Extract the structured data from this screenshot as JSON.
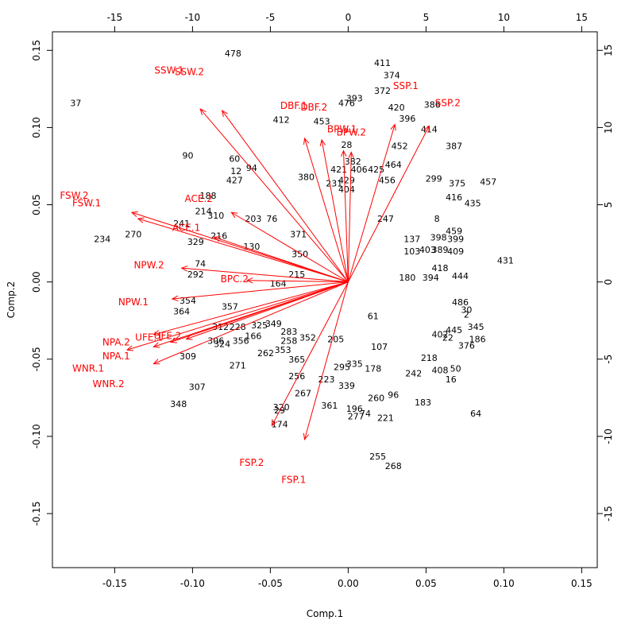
{
  "chart_data": {
    "type": "scatter",
    "subtype": "pca-biplot",
    "xlabel": "Comp.1",
    "ylabel": "Comp.2",
    "xlim": [
      -0.19,
      0.16
    ],
    "ylim": [
      -0.185,
      0.162
    ],
    "x_ticks": [
      -0.15,
      -0.1,
      -0.05,
      0.0,
      0.05,
      0.1,
      0.15
    ],
    "x_tick_labels": [
      "-0.15",
      "-0.10",
      "-0.05",
      "0.00",
      "0.05",
      "0.10",
      "0.15"
    ],
    "y_ticks": [
      -0.15,
      -0.1,
      -0.05,
      0.0,
      0.05,
      0.1,
      0.15
    ],
    "y_tick_labels": [
      "-0.15",
      "-0.10",
      "-0.05",
      "0.00",
      "0.05",
      "0.10",
      "0.15"
    ],
    "top_axis_ticks": [
      -15,
      -10,
      -5,
      0,
      5,
      10,
      15
    ],
    "top_axis_tick_labels": [
      "-15",
      "-10",
      "-5",
      "0",
      "5",
      "10",
      "15"
    ],
    "right_axis_ticks": [
      15,
      10,
      5,
      0,
      -5,
      -10,
      -15
    ],
    "right_axis_tick_labels": [
      "15",
      "10",
      "5",
      "0",
      "-5",
      "-10",
      "-15"
    ],
    "secondary_scale": 100,
    "grid": false,
    "colors": {
      "observations": "#000000",
      "loadings": "#ff0000"
    },
    "loadings": [
      {
        "name": "SSW.1",
        "x": -0.095,
        "y": 0.112,
        "lx": -0.115,
        "ly": 0.137
      },
      {
        "name": "SSW.2",
        "x": -0.081,
        "y": 0.111,
        "lx": -0.102,
        "ly": 0.136
      },
      {
        "name": "DBF.1",
        "x": -0.028,
        "y": 0.093,
        "lx": -0.035,
        "ly": 0.114
      },
      {
        "name": "DBF.2",
        "x": -0.017,
        "y": 0.092,
        "lx": -0.022,
        "ly": 0.113
      },
      {
        "name": "BPW.1",
        "x": -0.003,
        "y": 0.085,
        "lx": -0.004,
        "ly": 0.099
      },
      {
        "name": "BPW.2",
        "x": 0.002,
        "y": 0.084,
        "lx": 0.002,
        "ly": 0.097
      },
      {
        "name": "SSP.1",
        "x": 0.03,
        "y": 0.102,
        "lx": 0.037,
        "ly": 0.127
      },
      {
        "name": "SSP.2",
        "x": 0.052,
        "y": 0.101,
        "lx": 0.064,
        "ly": 0.116
      },
      {
        "name": "ACE.2",
        "x": -0.075,
        "y": 0.045,
        "lx": -0.096,
        "ly": 0.054
      },
      {
        "name": "ACE.1",
        "x": -0.086,
        "y": 0.029,
        "lx": -0.104,
        "ly": 0.035
      },
      {
        "name": "FSW.2",
        "x": -0.139,
        "y": 0.045,
        "lx": -0.176,
        "ly": 0.056
      },
      {
        "name": "FSW.1",
        "x": -0.135,
        "y": 0.041,
        "lx": -0.168,
        "ly": 0.051
      },
      {
        "name": "NPW.2",
        "x": -0.107,
        "y": 0.009,
        "lx": -0.128,
        "ly": 0.011
      },
      {
        "name": "NPW.1",
        "x": -0.113,
        "y": -0.011,
        "lx": -0.138,
        "ly": -0.013
      },
      {
        "name": "BPC.2",
        "x": -0.065,
        "y": 0.001,
        "lx": -0.073,
        "ly": 0.002
      },
      {
        "name": "UFE.1",
        "x": -0.114,
        "y": -0.039,
        "lx": -0.128,
        "ly": -0.036
      },
      {
        "name": "UFE.2",
        "x": -0.104,
        "y": -0.037,
        "lx": -0.116,
        "ly": -0.035
      },
      {
        "name": "NPA.2",
        "x": -0.125,
        "y": -0.034,
        "lx": -0.149,
        "ly": -0.039
      },
      {
        "name": "NPA.1",
        "x": -0.125,
        "y": -0.042,
        "lx": -0.149,
        "ly": -0.048
      },
      {
        "name": "WNR.1",
        "x": -0.142,
        "y": -0.044,
        "lx": -0.167,
        "ly": -0.056
      },
      {
        "name": "WNR.2",
        "x": -0.125,
        "y": -0.053,
        "lx": -0.154,
        "ly": -0.066
      },
      {
        "name": "FSP.2",
        "x": -0.049,
        "y": -0.093,
        "lx": -0.062,
        "ly": -0.117
      },
      {
        "name": "FSP.1",
        "x": -0.028,
        "y": -0.102,
        "lx": -0.035,
        "ly": -0.128
      }
    ],
    "observations": [
      {
        "label": "478",
        "x": -0.074,
        "y": 0.148
      },
      {
        "label": "37",
        "x": -0.175,
        "y": 0.116
      },
      {
        "label": "411",
        "x": 0.022,
        "y": 0.142
      },
      {
        "label": "374",
        "x": 0.028,
        "y": 0.134
      },
      {
        "label": "372",
        "x": 0.022,
        "y": 0.124
      },
      {
        "label": "393",
        "x": 0.004,
        "y": 0.119
      },
      {
        "label": "476",
        "x": -0.001,
        "y": 0.116
      },
      {
        "label": "412",
        "x": -0.043,
        "y": 0.105
      },
      {
        "label": "453",
        "x": -0.017,
        "y": 0.104
      },
      {
        "label": "420",
        "x": 0.031,
        "y": 0.113
      },
      {
        "label": "396",
        "x": 0.038,
        "y": 0.106
      },
      {
        "label": "386",
        "x": 0.054,
        "y": 0.115
      },
      {
        "label": "414",
        "x": 0.052,
        "y": 0.099
      },
      {
        "label": "387",
        "x": 0.068,
        "y": 0.088
      },
      {
        "label": "452",
        "x": 0.033,
        "y": 0.088
      },
      {
        "label": "28",
        "x": -0.001,
        "y": 0.089
      },
      {
        "label": "90",
        "x": -0.103,
        "y": 0.082
      },
      {
        "label": "60",
        "x": -0.073,
        "y": 0.08
      },
      {
        "label": "94",
        "x": -0.062,
        "y": 0.074
      },
      {
        "label": "12",
        "x": -0.072,
        "y": 0.072
      },
      {
        "label": "427",
        "x": -0.073,
        "y": 0.066
      },
      {
        "label": "382",
        "x": 0.003,
        "y": 0.078
      },
      {
        "label": "421",
        "x": -0.006,
        "y": 0.073
      },
      {
        "label": "406",
        "x": 0.007,
        "y": 0.073
      },
      {
        "label": "425",
        "x": 0.018,
        "y": 0.073
      },
      {
        "label": "464",
        "x": 0.029,
        "y": 0.076
      },
      {
        "label": "429",
        "x": -0.001,
        "y": 0.066
      },
      {
        "label": "456",
        "x": 0.025,
        "y": 0.066
      },
      {
        "label": "299",
        "x": 0.055,
        "y": 0.067
      },
      {
        "label": "375",
        "x": 0.07,
        "y": 0.064
      },
      {
        "label": "457",
        "x": 0.09,
        "y": 0.065
      },
      {
        "label": "380",
        "x": -0.027,
        "y": 0.068
      },
      {
        "label": "231",
        "x": -0.009,
        "y": 0.064
      },
      {
        "label": "404",
        "x": -0.001,
        "y": 0.06
      },
      {
        "label": "188",
        "x": -0.09,
        "y": 0.056
      },
      {
        "label": "214",
        "x": -0.093,
        "y": 0.046
      },
      {
        "label": "310",
        "x": -0.085,
        "y": 0.043
      },
      {
        "label": "241",
        "x": -0.107,
        "y": 0.038
      },
      {
        "label": "203",
        "x": -0.061,
        "y": 0.041
      },
      {
        "label": "76",
        "x": -0.049,
        "y": 0.041
      },
      {
        "label": "416",
        "x": 0.068,
        "y": 0.055
      },
      {
        "label": "435",
        "x": 0.08,
        "y": 0.051
      },
      {
        "label": "8",
        "x": 0.057,
        "y": 0.041
      },
      {
        "label": "234",
        "x": -0.158,
        "y": 0.028
      },
      {
        "label": "270",
        "x": -0.138,
        "y": 0.031
      },
      {
        "label": "329",
        "x": -0.098,
        "y": 0.026
      },
      {
        "label": "216",
        "x": -0.083,
        "y": 0.03
      },
      {
        "label": "371",
        "x": -0.032,
        "y": 0.031
      },
      {
        "label": "459",
        "x": 0.068,
        "y": 0.033
      },
      {
        "label": "399",
        "x": 0.069,
        "y": 0.028
      },
      {
        "label": "398",
        "x": 0.058,
        "y": 0.029
      },
      {
        "label": "137",
        "x": 0.041,
        "y": 0.028
      },
      {
        "label": "403",
        "x": 0.051,
        "y": 0.021
      },
      {
        "label": "409",
        "x": 0.069,
        "y": 0.02
      },
      {
        "label": "389",
        "x": 0.059,
        "y": 0.021
      },
      {
        "label": "103",
        "x": 0.041,
        "y": 0.02
      },
      {
        "label": "130",
        "x": -0.062,
        "y": 0.023
      },
      {
        "label": "431",
        "x": 0.101,
        "y": 0.014
      },
      {
        "label": "74",
        "x": -0.095,
        "y": 0.012
      },
      {
        "label": "292",
        "x": -0.098,
        "y": 0.005
      },
      {
        "label": "444",
        "x": 0.072,
        "y": 0.004
      },
      {
        "label": "418",
        "x": 0.059,
        "y": 0.009
      },
      {
        "label": "394",
        "x": 0.053,
        "y": 0.003
      },
      {
        "label": "180",
        "x": 0.038,
        "y": 0.003
      },
      {
        "label": "215",
        "x": -0.033,
        "y": 0.005
      },
      {
        "label": "164",
        "x": -0.045,
        "y": -0.001
      },
      {
        "label": "30",
        "x": 0.076,
        "y": -0.018
      },
      {
        "label": "486",
        "x": 0.072,
        "y": -0.013
      },
      {
        "label": "2",
        "x": 0.076,
        "y": -0.021
      },
      {
        "label": "354",
        "x": -0.103,
        "y": -0.012
      },
      {
        "label": "364",
        "x": -0.107,
        "y": -0.019
      },
      {
        "label": "357",
        "x": -0.076,
        "y": -0.016
      },
      {
        "label": "312",
        "x": -0.082,
        "y": -0.029
      },
      {
        "label": "228",
        "x": -0.071,
        "y": -0.029
      },
      {
        "label": "325",
        "x": -0.057,
        "y": -0.028
      },
      {
        "label": "349",
        "x": -0.048,
        "y": -0.027
      },
      {
        "label": "445",
        "x": 0.068,
        "y": -0.031
      },
      {
        "label": "345",
        "x": 0.082,
        "y": -0.029
      },
      {
        "label": "186",
        "x": 0.083,
        "y": -0.037
      },
      {
        "label": "402",
        "x": 0.059,
        "y": -0.034
      },
      {
        "label": "22",
        "x": 0.064,
        "y": -0.036
      },
      {
        "label": "376",
        "x": 0.076,
        "y": -0.041
      },
      {
        "label": "306",
        "x": -0.085,
        "y": -0.038
      },
      {
        "label": "324",
        "x": -0.081,
        "y": -0.04
      },
      {
        "label": "356",
        "x": -0.069,
        "y": -0.038
      },
      {
        "label": "166",
        "x": -0.061,
        "y": -0.035
      },
      {
        "label": "283",
        "x": -0.038,
        "y": -0.032
      },
      {
        "label": "262",
        "x": -0.053,
        "y": -0.046
      },
      {
        "label": "258",
        "x": -0.038,
        "y": -0.038
      },
      {
        "label": "352",
        "x": -0.026,
        "y": -0.036
      },
      {
        "label": "353",
        "x": -0.042,
        "y": -0.044
      },
      {
        "label": "309",
        "x": -0.103,
        "y": -0.048
      },
      {
        "label": "365",
        "x": -0.033,
        "y": -0.05
      },
      {
        "label": "218",
        "x": 0.052,
        "y": -0.049
      },
      {
        "label": "271",
        "x": -0.071,
        "y": -0.054
      },
      {
        "label": "408",
        "x": 0.059,
        "y": -0.057
      },
      {
        "label": "50",
        "x": 0.069,
        "y": -0.056
      },
      {
        "label": "16",
        "x": 0.066,
        "y": -0.063
      },
      {
        "label": "256",
        "x": -0.033,
        "y": -0.061
      },
      {
        "label": "335",
        "x": 0.004,
        "y": -0.053
      },
      {
        "label": "178",
        "x": 0.016,
        "y": -0.056
      },
      {
        "label": "295",
        "x": -0.004,
        "y": -0.055
      },
      {
        "label": "223",
        "x": -0.014,
        "y": -0.063
      },
      {
        "label": "339",
        "x": -0.001,
        "y": -0.067
      },
      {
        "label": "307",
        "x": -0.097,
        "y": -0.068
      },
      {
        "label": "267",
        "x": -0.029,
        "y": -0.072
      },
      {
        "label": "96",
        "x": 0.029,
        "y": -0.073
      },
      {
        "label": "260",
        "x": 0.018,
        "y": -0.075
      },
      {
        "label": "348",
        "x": -0.109,
        "y": -0.079
      },
      {
        "label": "361",
        "x": -0.012,
        "y": -0.08
      },
      {
        "label": "183",
        "x": 0.048,
        "y": -0.078
      },
      {
        "label": "64",
        "x": 0.082,
        "y": -0.085
      },
      {
        "label": "320",
        "x": -0.043,
        "y": -0.081
      },
      {
        "label": "196",
        "x": 0.004,
        "y": -0.082
      },
      {
        "label": "277",
        "x": 0.005,
        "y": -0.087
      },
      {
        "label": "74",
        "x": 0.011,
        "y": -0.085
      },
      {
        "label": "221",
        "x": 0.024,
        "y": -0.088
      },
      {
        "label": "29",
        "x": -0.044,
        "y": -0.083
      },
      {
        "label": "174",
        "x": -0.044,
        "y": -0.092
      },
      {
        "label": "255",
        "x": 0.019,
        "y": -0.113
      },
      {
        "label": "268",
        "x": 0.029,
        "y": -0.119
      },
      {
        "label": "61",
        "x": 0.016,
        "y": -0.022
      },
      {
        "label": "107",
        "x": 0.02,
        "y": -0.042
      },
      {
        "label": "205",
        "x": -0.008,
        "y": -0.037
      },
      {
        "label": "242",
        "x": 0.042,
        "y": -0.059
      },
      {
        "label": "247",
        "x": 0.024,
        "y": 0.041
      },
      {
        "label": "350",
        "x": -0.031,
        "y": 0.018
      }
    ]
  }
}
